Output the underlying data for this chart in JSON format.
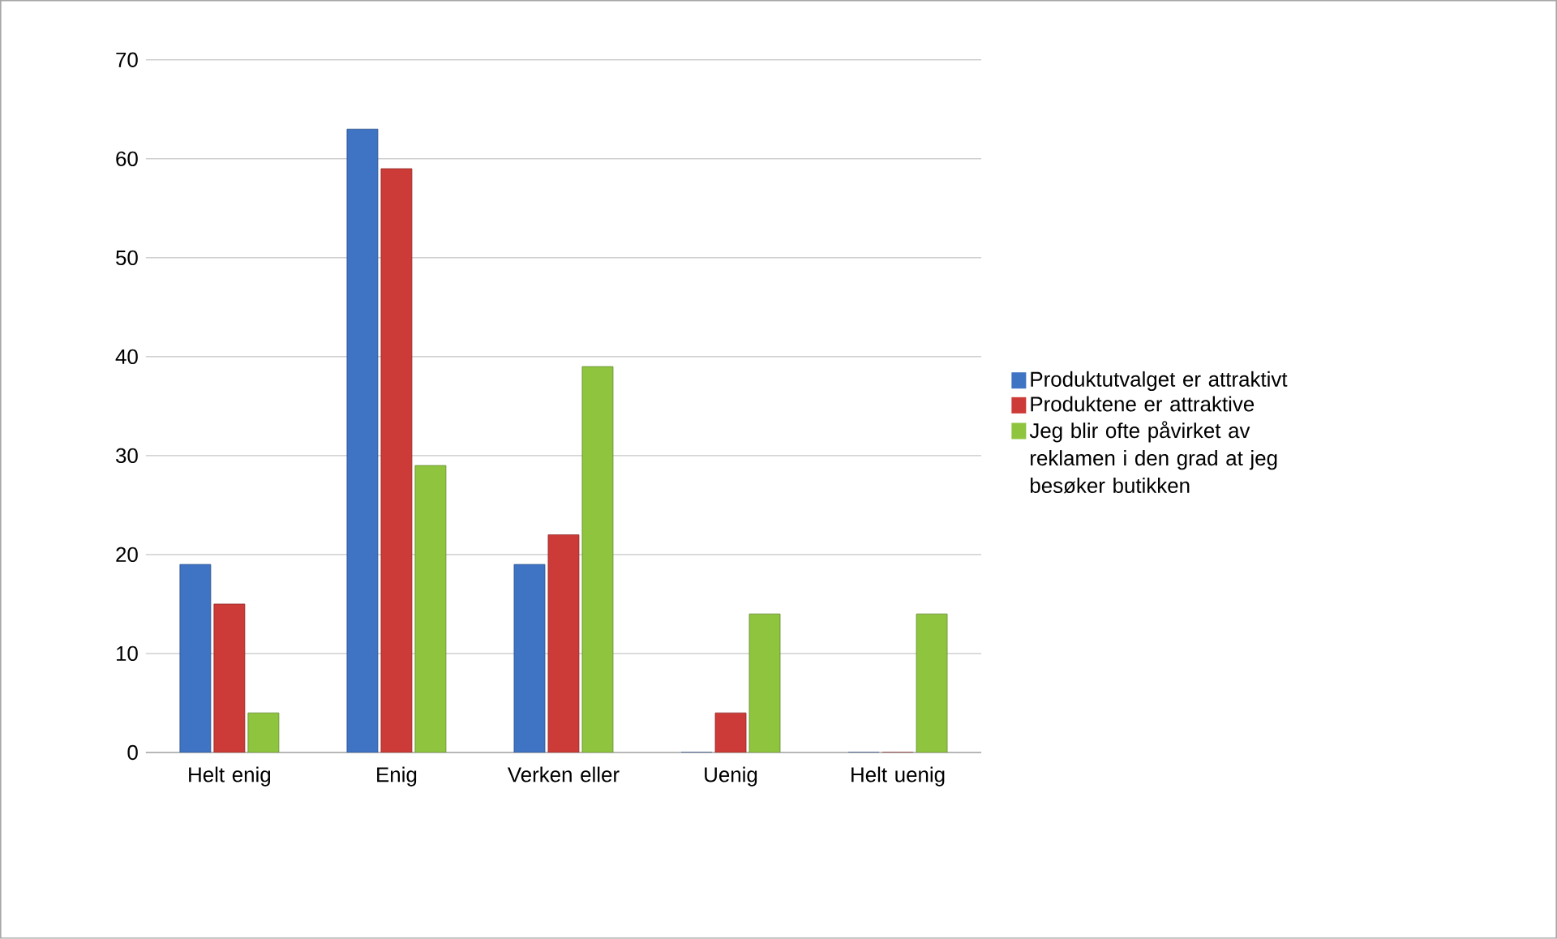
{
  "chart_data": {
    "type": "bar",
    "categories": [
      "Helt enig",
      "Enig",
      "Verken eller",
      "Uenig",
      "Helt uenig"
    ],
    "series": [
      {
        "name": "Produktutvalget er attraktivt",
        "color": "#3f73c4",
        "values": [
          19,
          63,
          19,
          0,
          0
        ]
      },
      {
        "name": "Produktene er attraktive",
        "color": "#cc3b37",
        "values": [
          15,
          59,
          22,
          4,
          0
        ]
      },
      {
        "name": "Jeg blir ofte påvirket av reklamen i den grad at jeg besøker butikken",
        "color": "#8ec43e",
        "values": [
          4,
          29,
          39,
          14,
          14
        ]
      }
    ],
    "ylim": [
      0,
      70
    ],
    "yticks": [
      0,
      10,
      20,
      30,
      40,
      50,
      60,
      70
    ],
    "grid": "y",
    "legend": "right"
  }
}
